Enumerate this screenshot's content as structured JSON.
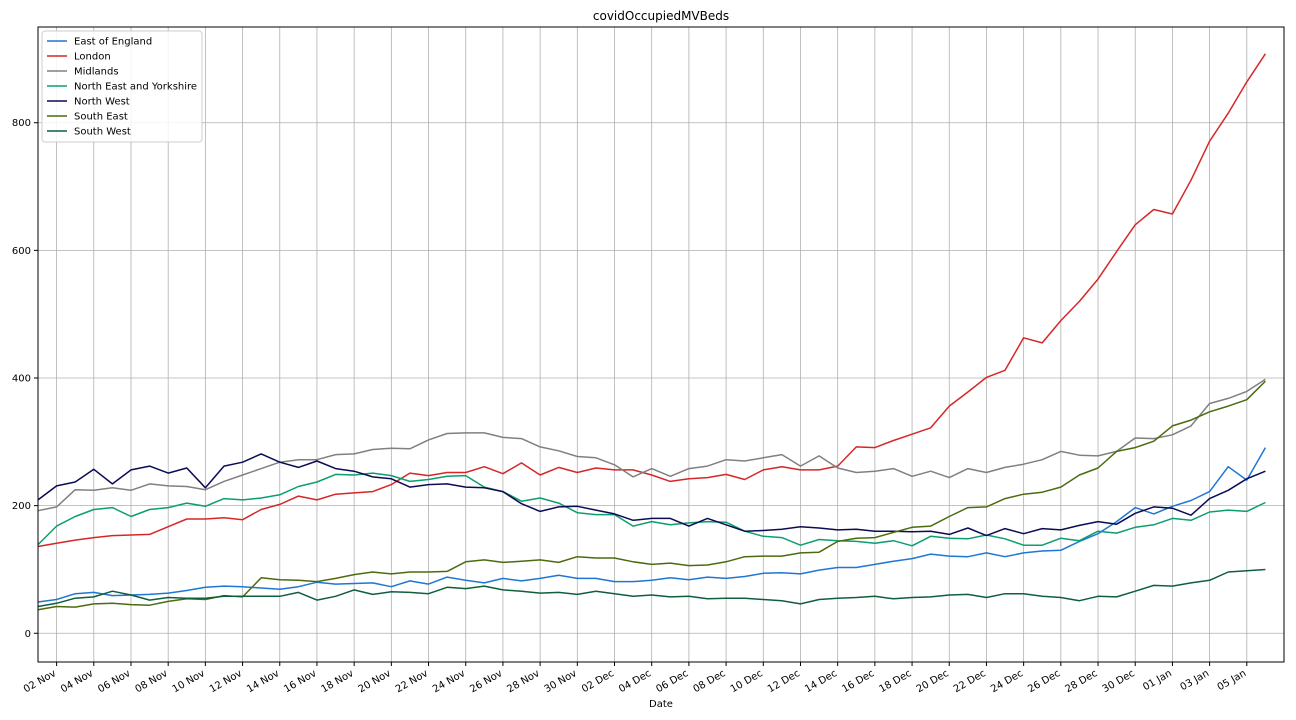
{
  "chart_data": {
    "type": "line",
    "title": "covidOccupiedMVBeds",
    "xlabel": "Date",
    "ylabel": "",
    "x_start": "2020-11-01",
    "xlim": [
      "2020-11-01",
      "2021-01-07"
    ],
    "ylim": [
      -45,
      950
    ],
    "grid": true,
    "legend_position": "top-left",
    "x_ticks": [
      "02 Nov",
      "04 Nov",
      "06 Nov",
      "08 Nov",
      "10 Nov",
      "12 Nov",
      "14 Nov",
      "16 Nov",
      "18 Nov",
      "20 Nov",
      "22 Nov",
      "24 Nov",
      "26 Nov",
      "28 Nov",
      "30 Nov",
      "02 Dec",
      "04 Dec",
      "06 Dec",
      "08 Dec",
      "10 Dec",
      "12 Dec",
      "14 Dec",
      "16 Dec",
      "18 Dec",
      "20 Dec",
      "22 Dec",
      "24 Dec",
      "26 Dec",
      "28 Dec",
      "30 Dec",
      "01 Jan",
      "03 Jan",
      "05 Jan"
    ],
    "y_ticks": [
      0,
      200,
      400,
      600,
      800
    ],
    "series": [
      {
        "name": "East of England",
        "color": "#1f77d4",
        "values": [
          49,
          53,
          62,
          64,
          59,
          60,
          61,
          63,
          67,
          72,
          74,
          73,
          71,
          69,
          73,
          80,
          77,
          78,
          79,
          73,
          82,
          77,
          88,
          83,
          79,
          86,
          82,
          86,
          91,
          86,
          86,
          81,
          81,
          83,
          87,
          84,
          88,
          86,
          89,
          94,
          95,
          93,
          99,
          103,
          103,
          108,
          113,
          117,
          124,
          121,
          120,
          126,
          120,
          126,
          129,
          130,
          144,
          156,
          175,
          197,
          187,
          199,
          208,
          222,
          261,
          240,
          291
        ]
      },
      {
        "name": "London",
        "color": "#d62728",
        "values": [
          136,
          141,
          146,
          150,
          153,
          154,
          155,
          167,
          179,
          179,
          181,
          178,
          194,
          202,
          215,
          209,
          218,
          220,
          222,
          233,
          251,
          247,
          252,
          252,
          261,
          250,
          267,
          248,
          260,
          252,
          259,
          256,
          256,
          248,
          238,
          242,
          244,
          249,
          241,
          256,
          261,
          256,
          256,
          262,
          292,
          291,
          302,
          312,
          322,
          356,
          378,
          401,
          412,
          463,
          455,
          490,
          520,
          555,
          598,
          640,
          664,
          657,
          710,
          771,
          815,
          864,
          908
        ]
      },
      {
        "name": "Midlands",
        "color": "#808080",
        "values": [
          192,
          198,
          225,
          224,
          228,
          224,
          234,
          231,
          230,
          225,
          238,
          248,
          258,
          268,
          272,
          272,
          280,
          281,
          288,
          290,
          289,
          303,
          313,
          314,
          314,
          307,
          305,
          292,
          286,
          277,
          275,
          264,
          245,
          258,
          246,
          258,
          262,
          272,
          270,
          275,
          280,
          262,
          278,
          259,
          252,
          254,
          258,
          246,
          254,
          244,
          258,
          252,
          260,
          265,
          272,
          285,
          279,
          278,
          285,
          306,
          305,
          311,
          325,
          360,
          368,
          379,
          398
        ]
      },
      {
        "name": "North East and Yorkshire",
        "color": "#0c9e6e",
        "values": [
          139,
          168,
          183,
          194,
          197,
          183,
          194,
          197,
          204,
          199,
          211,
          209,
          212,
          217,
          230,
          237,
          249,
          248,
          251,
          247,
          238,
          241,
          246,
          247,
          229,
          222,
          207,
          212,
          204,
          189,
          186,
          186,
          168,
          175,
          170,
          173,
          175,
          174,
          160,
          152,
          150,
          138,
          147,
          145,
          144,
          141,
          145,
          137,
          152,
          149,
          148,
          154,
          148,
          138,
          138,
          149,
          145,
          160,
          157,
          166,
          170,
          180,
          177,
          190,
          193,
          191,
          205
        ]
      },
      {
        "name": "North West",
        "color": "#0b0b55",
        "values": [
          209,
          231,
          237,
          257,
          234,
          256,
          262,
          251,
          259,
          228,
          262,
          268,
          281,
          268,
          260,
          270,
          258,
          254,
          245,
          242,
          229,
          233,
          234,
          229,
          228,
          222,
          203,
          191,
          198,
          199,
          193,
          187,
          177,
          180,
          180,
          168,
          180,
          170,
          160,
          161,
          163,
          167,
          165,
          162,
          163,
          160,
          160,
          159,
          160,
          155,
          165,
          153,
          164,
          156,
          164,
          162,
          169,
          175,
          171,
          188,
          198,
          196,
          185,
          211,
          224,
          242,
          254
        ]
      },
      {
        "name": "South East",
        "color": "#4c6b0f",
        "values": [
          37,
          42,
          41,
          46,
          47,
          45,
          44,
          50,
          54,
          53,
          59,
          57,
          87,
          84,
          83,
          81,
          86,
          92,
          96,
          93,
          96,
          96,
          97,
          112,
          115,
          111,
          113,
          115,
          111,
          120,
          118,
          118,
          112,
          108,
          110,
          106,
          107,
          112,
          120,
          121,
          121,
          126,
          127,
          144,
          149,
          150,
          158,
          166,
          168,
          183,
          197,
          198,
          211,
          218,
          221,
          229,
          248,
          259,
          285,
          291,
          301,
          325,
          334,
          347,
          356,
          366,
          395
        ]
      },
      {
        "name": "South West",
        "color": "#0f5f3c",
        "values": [
          42,
          47,
          55,
          57,
          66,
          60,
          52,
          56,
          55,
          55,
          58,
          58,
          58,
          58,
          64,
          52,
          58,
          68,
          61,
          65,
          64,
          62,
          72,
          70,
          74,
          68,
          66,
          63,
          64,
          61,
          66,
          62,
          58,
          60,
          57,
          58,
          54,
          55,
          55,
          53,
          51,
          46,
          53,
          55,
          56,
          58,
          54,
          56,
          57,
          60,
          61,
          56,
          62,
          62,
          58,
          56,
          51,
          58,
          57,
          66,
          75,
          74,
          79,
          83,
          96,
          98,
          100
        ]
      }
    ]
  }
}
